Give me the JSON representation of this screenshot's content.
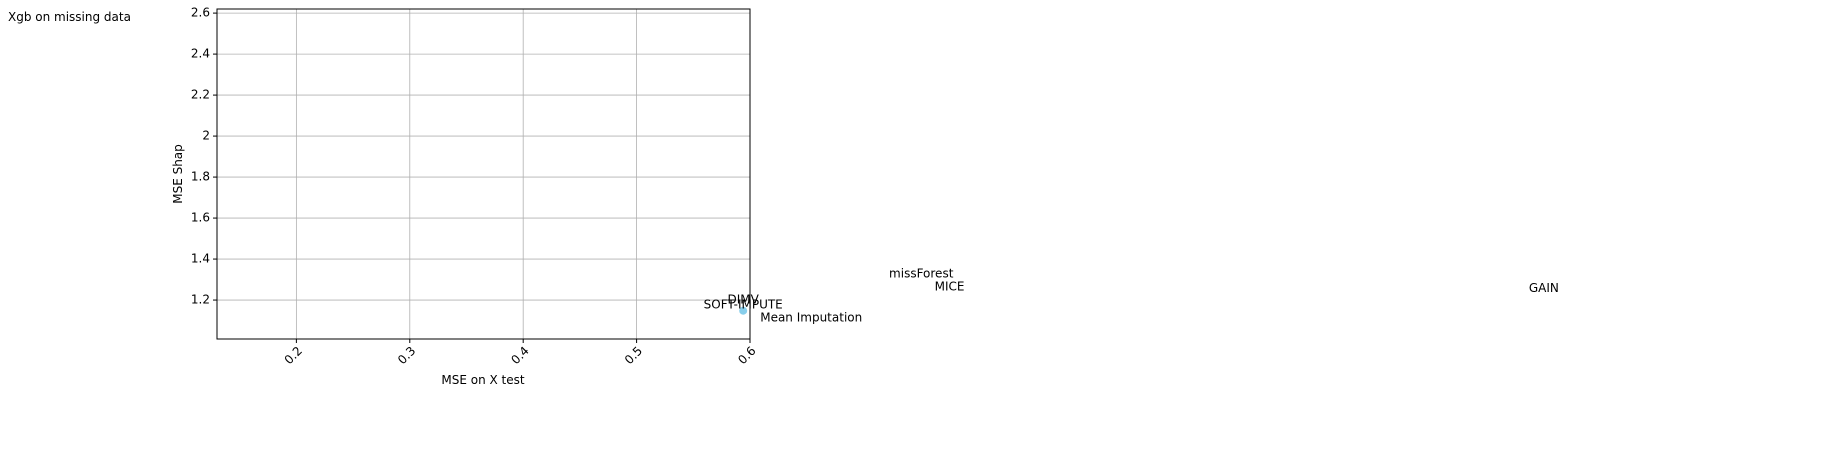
{
  "chart_data": {
    "type": "scatter",
    "title": "Xgb on missing data",
    "xlabel": "MSE on X test",
    "ylabel": "MSE Shap",
    "x": [
      0.594
    ],
    "y": [
      1.148
    ],
    "color": "#87ceeb",
    "xlim": [
      0.13,
      0.6
    ],
    "ylim": [
      1.01,
      2.62
    ],
    "xticks": [
      0.2,
      0.3,
      0.4,
      0.5,
      0.6
    ],
    "yticks": [
      1.2,
      1.4,
      1.6,
      1.8,
      2.0,
      2.2,
      2.4,
      2.6
    ],
    "grid": true,
    "annotations": [
      {
        "text": "missForest",
        "x": 0.751,
        "y": 1.327
      },
      {
        "text": "MICE",
        "x": 0.776,
        "y": 1.263
      },
      {
        "text": "GAIN",
        "x": 1.3,
        "y": 1.257
      },
      {
        "text": "DIMV",
        "x": 0.594,
        "y": 1.2
      },
      {
        "text": "SOFT-IMPUTE",
        "x": 0.594,
        "y": 1.176
      },
      {
        "text": "Mean Imputation",
        "x": 0.654,
        "y": 1.112
      }
    ]
  }
}
